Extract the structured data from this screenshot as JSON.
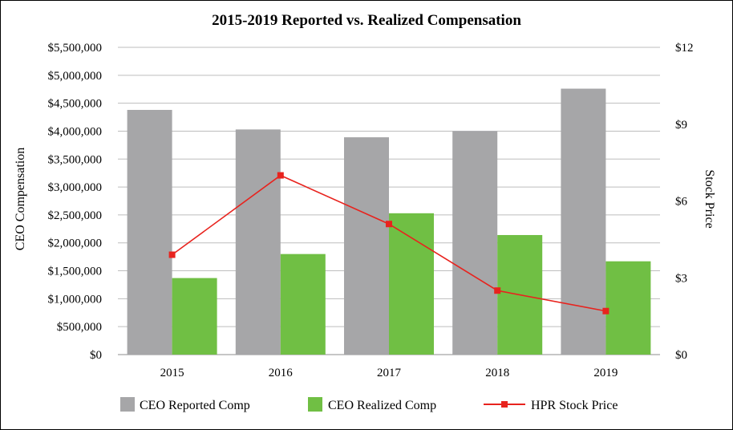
{
  "chart_data": {
    "type": "bar",
    "title": "2015-2019 Reported vs. Realized Compensation",
    "categories": [
      "2015",
      "2016",
      "2017",
      "2018",
      "2019"
    ],
    "ylabel": "CEO Compensation",
    "y2label": "Stock Price",
    "ylim": [
      0,
      5500000
    ],
    "y2lim": [
      0,
      12
    ],
    "yticks": [
      0,
      500000,
      1000000,
      1500000,
      2000000,
      2500000,
      3000000,
      3500000,
      4000000,
      4500000,
      5000000,
      5500000
    ],
    "ytick_labels": [
      "$0",
      "$500,000",
      "$1,000,000",
      "$1,500,000",
      "$2,000,000",
      "$2,500,000",
      "$3,000,000",
      "$3,500,000",
      "$4,000,000",
      "$4,500,000",
      "$5,000,000",
      "$5,500,000"
    ],
    "y2ticks": [
      0,
      3,
      6,
      9,
      12
    ],
    "y2tick_labels": [
      "$0",
      "$3",
      "$6",
      "$9",
      "$12"
    ],
    "grid": true,
    "legend_position": "bottom",
    "series": [
      {
        "name": "CEO Reported Comp",
        "kind": "bar",
        "axis": "left",
        "color": "#A6A6A8",
        "values": [
          4380000,
          4030000,
          3890000,
          4000000,
          4760000
        ]
      },
      {
        "name": "CEO Realized Comp",
        "kind": "bar",
        "axis": "left",
        "color": "#70BF44",
        "values": [
          1370000,
          1800000,
          2530000,
          2140000,
          1670000
        ]
      },
      {
        "name": "HPR Stock Price",
        "kind": "line",
        "axis": "right",
        "color": "#E8231E",
        "values": [
          3.9,
          7.0,
          5.1,
          2.5,
          1.7
        ]
      }
    ]
  }
}
